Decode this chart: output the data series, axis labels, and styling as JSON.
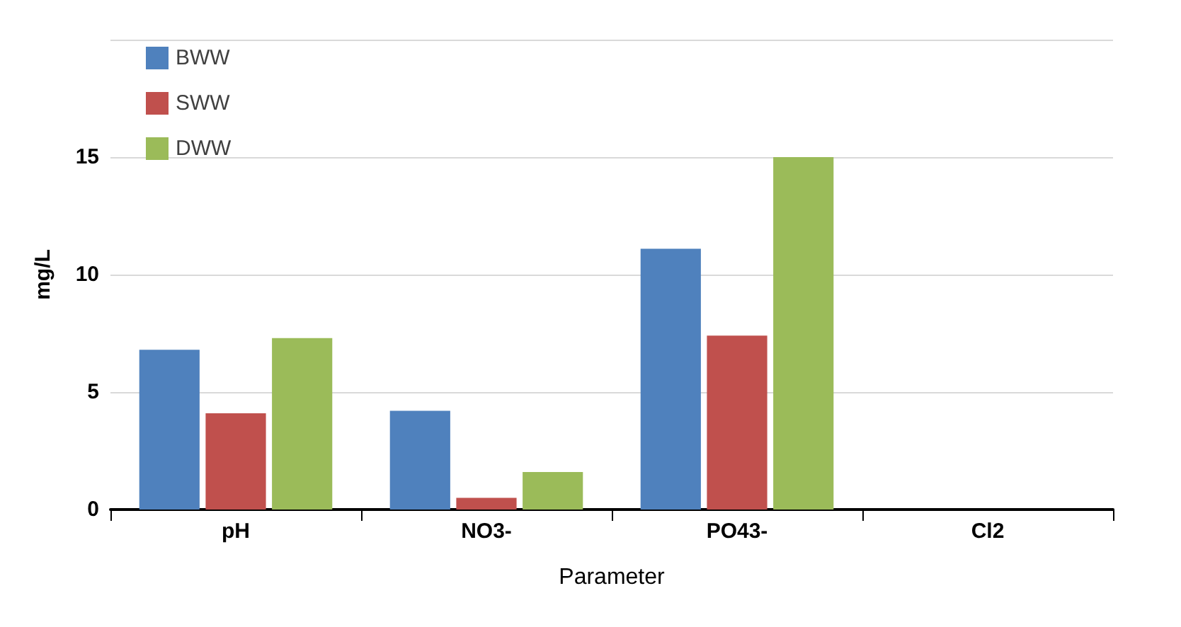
{
  "chart_data": {
    "type": "bar",
    "xlabel": "Parameter",
    "ylabel": "mg/L",
    "categories": [
      "pH",
      "NO3-",
      "PO43-",
      "Cl2"
    ],
    "series": [
      {
        "name": "BWW",
        "color": "#4f81bd",
        "values": [
          6.8,
          4.2,
          11.1,
          0
        ]
      },
      {
        "name": "SWW",
        "color": "#c0504d",
        "values": [
          4.1,
          0.5,
          7.4,
          0
        ]
      },
      {
        "name": "DWW",
        "color": "#9bbb59",
        "values": [
          7.3,
          1.6,
          15,
          0
        ]
      }
    ],
    "ylim": [
      0,
      20
    ],
    "yticks": [
      0,
      5,
      10,
      15,
      {
        "value": 20,
        "label": null
      }
    ],
    "grid": "y",
    "legend": "top left"
  }
}
